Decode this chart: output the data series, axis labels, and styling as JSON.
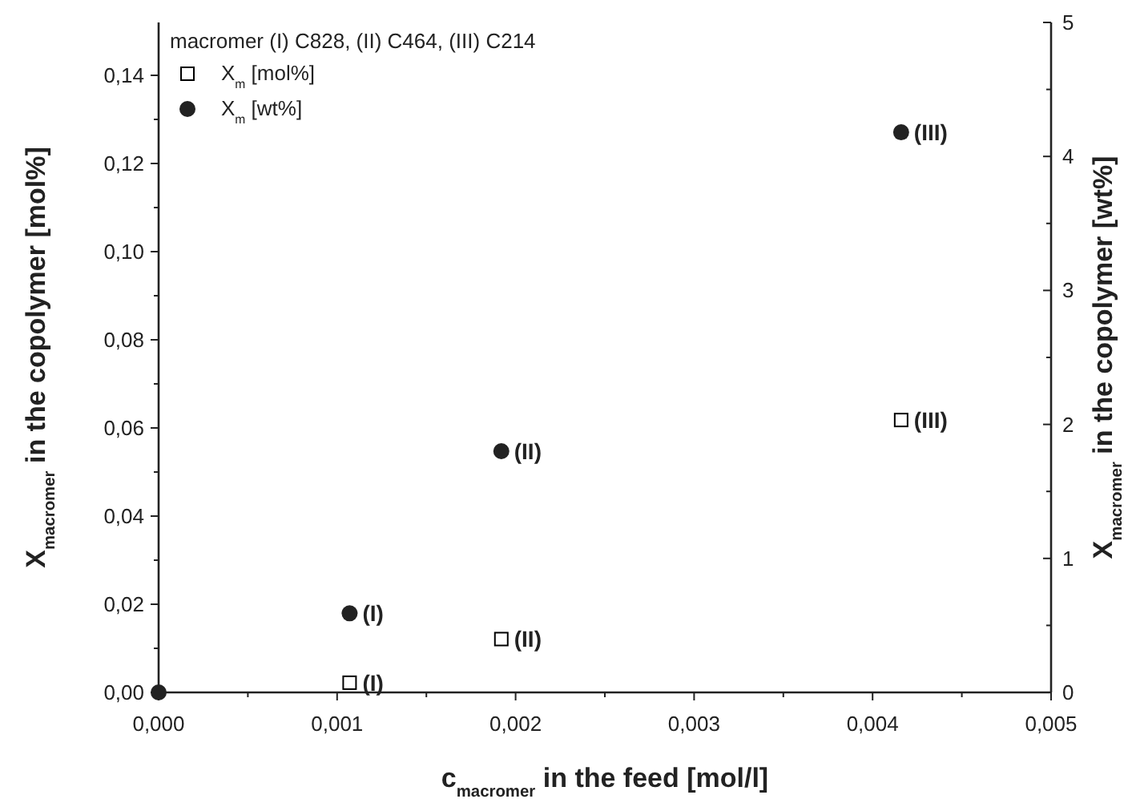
{
  "chart_data": {
    "type": "scatter",
    "xlabel": "c$_{macromer}$ in the feed [mol/l]",
    "ylabel": "X$_{macromer}$ in the copolymer [mol%]",
    "y2label": "X$_{macromer}$ in the copolymer [wt%]",
    "legend_title": "macromer (I) C828, (II) C464, (III) C214",
    "legend": "top left",
    "grid": false,
    "xlim": [
      0,
      0.005
    ],
    "xticks": [
      {
        "value": 0,
        "label": "0,000"
      },
      {
        "value": 0.0005,
        "label": null
      },
      {
        "value": 0.001,
        "label": "0,001"
      },
      {
        "value": 0.0015,
        "label": null
      },
      {
        "value": 0.002,
        "label": "0,002"
      },
      {
        "value": 0.0025,
        "label": null
      },
      {
        "value": 0.003,
        "label": "0,003"
      },
      {
        "value": 0.0035,
        "label": null
      },
      {
        "value": 0.004,
        "label": "0,004"
      },
      {
        "value": 0.0045,
        "label": null
      },
      {
        "value": 0.005,
        "label": "0,005"
      }
    ],
    "ylim": [
      0,
      0.152
    ],
    "yticks": [
      {
        "value": 0,
        "label": "0,00"
      },
      {
        "value": 0.01,
        "label": null
      },
      {
        "value": 0.02,
        "label": "0,02"
      },
      {
        "value": 0.03,
        "label": null
      },
      {
        "value": 0.04,
        "label": "0,04"
      },
      {
        "value": 0.05,
        "label": null
      },
      {
        "value": 0.06,
        "label": "0,06"
      },
      {
        "value": 0.07,
        "label": null
      },
      {
        "value": 0.08,
        "label": "0,08"
      },
      {
        "value": 0.09,
        "label": null
      },
      {
        "value": 0.1,
        "label": "0,10"
      },
      {
        "value": 0.11,
        "label": null
      },
      {
        "value": 0.12,
        "label": "0,12"
      },
      {
        "value": 0.13,
        "label": null
      },
      {
        "value": 0.14,
        "label": "0,14"
      }
    ],
    "y2lim": [
      0,
      5
    ],
    "y2ticks": [
      0,
      {
        "value": 0.5,
        "label": null
      },
      1,
      {
        "value": 1.5,
        "label": null
      },
      2,
      {
        "value": 2.5,
        "label": null
      },
      3,
      {
        "value": 3.5,
        "label": null
      },
      4,
      {
        "value": 4.5,
        "label": null
      },
      5
    ],
    "series": [
      {
        "name": "X$_{m}$ [mol%]",
        "color": "#000000",
        "marker": "square",
        "x": [
          0.00107,
          0.00192,
          0.00416
        ],
        "values": [
          0.0022,
          0.0121,
          0.0618
        ],
        "value_labels": [
          "(I)",
          "(II)",
          "(III)"
        ]
      },
      {
        "name": "X$_{m}$ [wt%]",
        "color": "#222222",
        "marker": "circle",
        "axis": "y2",
        "x": [
          0,
          0.00107,
          0.00192,
          0.00416
        ],
        "values": [
          0,
          0.59,
          1.8,
          4.18
        ],
        "value_labels": [
          null,
          "(I)",
          "(II)",
          "(III)"
        ]
      }
    ]
  }
}
